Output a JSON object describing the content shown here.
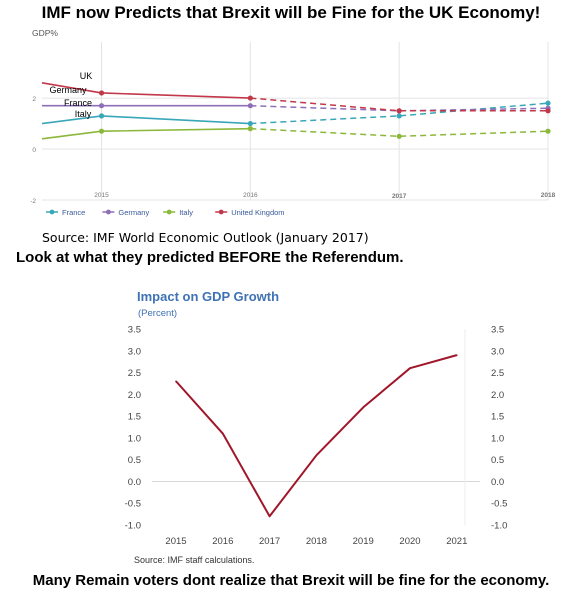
{
  "headline": "IMF now Predicts that Brexit will be Fine for the UK Economy!",
  "subheadline": "Look at what they predicted BEFORE the Referendum.",
  "caption": "Many Remain voters dont realize that Brexit will be fine for the economy.",
  "chart_data": [
    {
      "type": "line",
      "ylabel": "GDP%",
      "x_ticks": [
        "2015",
        "2016",
        "2017",
        "2018"
      ],
      "y_ticks": [
        -2,
        0,
        2
      ],
      "ylim": [
        -2,
        4.2
      ],
      "grid": true,
      "legend_position": "bottom",
      "source": "Source: IMF World Economic Outlook (January 2017)",
      "notes": "solid lines = actual, dashed lines = forecast (2016 onward)",
      "series": [
        {
          "name": "France",
          "label": "France",
          "color": "#3aa6b9",
          "x": [
            2014.6,
            2015,
            2016,
            2017,
            2018
          ],
          "y": [
            1.0,
            1.3,
            1.0,
            1.3,
            1.8
          ]
        },
        {
          "name": "Germany",
          "label": "Germany",
          "color": "#8e6fb7",
          "x": [
            2014.6,
            2015,
            2016,
            2017,
            2018
          ],
          "y": [
            1.7,
            1.7,
            1.7,
            1.5,
            1.6
          ]
        },
        {
          "name": "Italy",
          "label": "Italy",
          "color": "#8bb83a",
          "x": [
            2014.6,
            2015,
            2016,
            2017,
            2018
          ],
          "y": [
            0.4,
            0.7,
            0.8,
            0.5,
            0.7
          ]
        },
        {
          "name": "United Kingdom",
          "label": "UK",
          "color": "#c2384b",
          "x": [
            2014.6,
            2015,
            2016,
            2017,
            2018
          ],
          "y": [
            2.6,
            2.2,
            2.0,
            1.5,
            1.5
          ]
        }
      ]
    },
    {
      "type": "line",
      "title": "Impact on GDP Growth",
      "subtitle": "(Percent)",
      "categories": [
        "2015",
        "2016",
        "2017",
        "2018",
        "2019",
        "2020",
        "2021"
      ],
      "y_ticks": [
        "3.5",
        "3.0",
        "2.5",
        "2.0",
        "1.5",
        "1.0",
        "0.5",
        "0.0",
        "-0.5",
        "-1.0"
      ],
      "y_ticks_right": [
        "3.5",
        "3.0",
        "2.5",
        "2.0",
        "1.5",
        "1.0",
        "0.5",
        "0.0",
        "-0.5",
        "-1.0"
      ],
      "ylim": [
        -1.0,
        3.5
      ],
      "grid": false,
      "line_color": "#a0162a",
      "title_color": "#3f72b5",
      "source": "Source: IMF staff calculations.",
      "series": [
        {
          "values": [
            2.3,
            1.1,
            -0.8,
            0.6,
            1.7,
            2.6,
            2.9
          ]
        }
      ]
    }
  ]
}
